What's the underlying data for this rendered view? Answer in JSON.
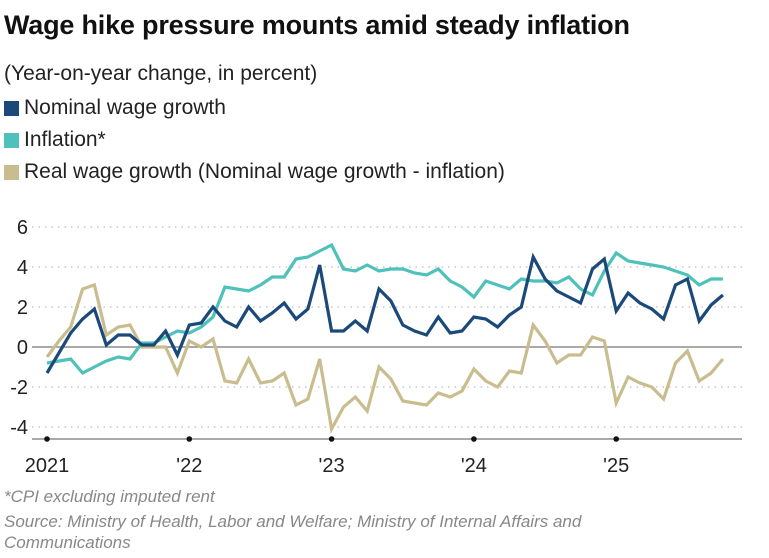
{
  "chart_data": {
    "type": "line",
    "title": "Wage hike pressure mounts amid steady inflation",
    "subtitle": "(Year-on-year change, in percent)",
    "x_start": "2021-01",
    "x_frequency": "monthly",
    "xtick_labels": [
      "2021",
      "'22",
      "'23",
      "'24",
      "'25"
    ],
    "ytick_labels": [
      "6",
      "4",
      "2",
      "0",
      "-2",
      "-4"
    ],
    "ylim": [
      -4.5,
      6
    ],
    "grid": "horizontal dotted",
    "legend_position": "top-left",
    "series": [
      {
        "name": "Nominal wage growth",
        "color": "#1b4a7a",
        "values": [
          -1.3,
          -0.3,
          0.7,
          1.4,
          1.9,
          0.1,
          0.6,
          0.6,
          0.1,
          0.1,
          0.8,
          -0.4,
          1.1,
          1.2,
          2.0,
          1.3,
          1.0,
          2.0,
          1.3,
          1.7,
          2.2,
          1.4,
          1.9,
          4.1,
          0.8,
          0.8,
          1.3,
          0.8,
          2.9,
          2.3,
          1.1,
          0.8,
          0.6,
          1.5,
          0.7,
          0.8,
          1.5,
          1.4,
          1.0,
          1.6,
          2.0,
          4.5,
          3.4,
          2.8,
          2.5,
          2.2,
          3.9,
          4.4,
          1.8,
          2.7,
          2.2,
          1.9,
          1.4,
          3.1,
          3.4,
          1.3,
          2.1,
          2.6
        ]
      },
      {
        "name": "Inflation*",
        "color": "#4fc1bb",
        "values": [
          -0.8,
          -0.7,
          -0.6,
          -1.3,
          -1.0,
          -0.7,
          -0.5,
          -0.6,
          0.2,
          0.2,
          0.5,
          0.8,
          0.7,
          1.0,
          1.5,
          3.0,
          2.9,
          2.8,
          3.1,
          3.5,
          3.5,
          4.4,
          4.5,
          4.8,
          5.1,
          3.9,
          3.8,
          4.1,
          3.8,
          3.9,
          3.9,
          3.7,
          3.6,
          3.9,
          3.3,
          3.0,
          2.5,
          3.3,
          3.1,
          2.9,
          3.4,
          3.3,
          3.3,
          3.2,
          3.5,
          2.9,
          2.6,
          3.8,
          4.7,
          4.3,
          4.2,
          4.1,
          4.0,
          3.8,
          3.6,
          3.1,
          3.4,
          3.4
        ]
      },
      {
        "name": "Real wage growth (Nominal wage growth - inflation)",
        "color": "#c9bd8f",
        "values": [
          -0.5,
          0.3,
          1.0,
          2.9,
          3.1,
          0.6,
          1.0,
          1.1,
          0.0,
          0.0,
          0.0,
          -1.3,
          0.3,
          0.0,
          0.4,
          -1.7,
          -1.8,
          -0.6,
          -1.8,
          -1.7,
          -1.3,
          -2.9,
          -2.6,
          -0.6,
          -4.1,
          -3.0,
          -2.5,
          -3.2,
          -1.0,
          -1.6,
          -2.7,
          -2.8,
          -2.9,
          -2.3,
          -2.5,
          -2.2,
          -1.1,
          -1.7,
          -2.0,
          -1.2,
          -1.3,
          1.1,
          0.3,
          -0.8,
          -0.4,
          -0.4,
          0.5,
          0.3,
          -2.8,
          -1.5,
          -1.8,
          -2.0,
          -2.6,
          -0.8,
          -0.2,
          -1.7,
          -1.3,
          -0.6
        ]
      }
    ]
  },
  "footnotes": [
    "*CPI excluding imputed rent",
    "Source: Ministry of Health, Labor and Welfare; Ministry of Internal Affairs and",
    "Communications"
  ]
}
